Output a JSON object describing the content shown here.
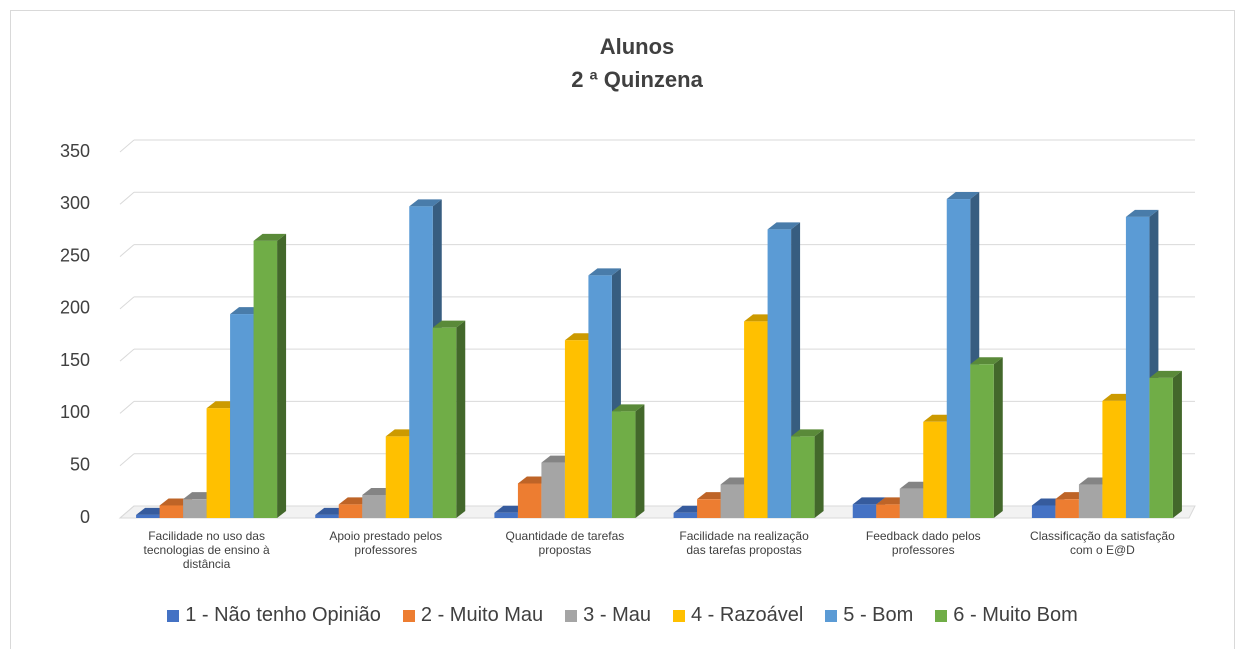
{
  "chart_data": {
    "type": "bar3d",
    "title": "Alunos",
    "subtitle": "2 ª Quinzena",
    "categories": [
      "Facilidade no uso das tecnologias de ensino à distância",
      "Apoio prestado pelos professores",
      "Quantidade de tarefas propostas",
      "Facilidade na realização das tarefas propostas",
      "Feedback dado pelos professores",
      "Classificação da satisfação com o E@D"
    ],
    "series": [
      {
        "name": "1 - Não tenho Opinião",
        "color": "#4472c4",
        "values": [
          3,
          3,
          5,
          5,
          13,
          12
        ]
      },
      {
        "name": "2 - Muito Mau",
        "color": "#ed7d31",
        "values": [
          12,
          13,
          33,
          18,
          13,
          18
        ]
      },
      {
        "name": "3 - Mau",
        "color": "#a5a5a5",
        "values": [
          18,
          22,
          53,
          32,
          28,
          32
        ]
      },
      {
        "name": "4 - Razoável",
        "color": "#ffc000",
        "values": [
          105,
          78,
          170,
          188,
          92,
          112
        ]
      },
      {
        "name": "5 - Bom",
        "color": "#5b9bd5",
        "values": [
          195,
          298,
          232,
          276,
          305,
          288
        ]
      },
      {
        "name": "6 - Muito Bom",
        "color": "#70ad47",
        "values": [
          265,
          182,
          102,
          78,
          147,
          134
        ]
      }
    ],
    "ylim": [
      0,
      350
    ],
    "yticks": [
      0,
      50,
      100,
      150,
      200,
      250,
      300,
      350
    ],
    "grid": true,
    "legend": "bottom"
  }
}
